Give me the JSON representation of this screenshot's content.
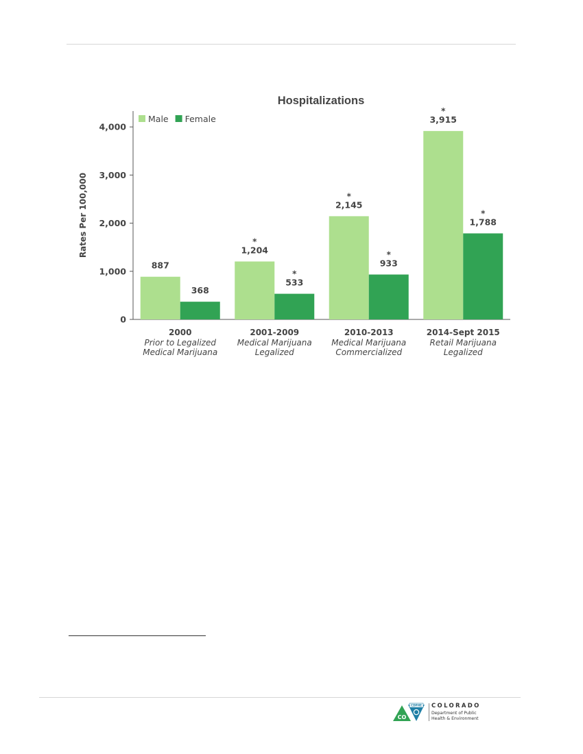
{
  "chart_data": {
    "type": "bar",
    "title": "Hospitalizations",
    "ylabel": "Rates Per 100,000",
    "xlabel": "",
    "ylim": [
      0,
      4300
    ],
    "yticks": [
      0,
      1000,
      2000,
      3000,
      4000
    ],
    "ytick_labels": [
      "0",
      "1,000",
      "2,000",
      "3,000",
      "4,000"
    ],
    "categories": [
      "2000",
      "2001-2009",
      "2010-2013",
      "2014-Sept 2015"
    ],
    "category_sublabels": [
      [
        "Prior to Legalized",
        "Medical Marijuana"
      ],
      [
        "Medical Marijuana",
        "Legalized"
      ],
      [
        "Medical Marijuana",
        "Commercialized"
      ],
      [
        "Retail Marijuana",
        "Legalized"
      ]
    ],
    "series": [
      {
        "name": "Male",
        "color": "#addf8e",
        "values": [
          887,
          1204,
          2145,
          3915
        ],
        "labels": [
          "887",
          "1,204",
          "2,145",
          "3,915"
        ],
        "significant": [
          false,
          true,
          true,
          true
        ]
      },
      {
        "name": "Female",
        "color": "#31a354",
        "values": [
          368,
          533,
          933,
          1788
        ],
        "labels": [
          "368",
          "533",
          "933",
          "1,788"
        ],
        "significant": [
          false,
          true,
          true,
          true
        ]
      }
    ],
    "significance_marker": "*",
    "legend": "top-left",
    "grid": false
  },
  "footer": {
    "agency_name": "COLORADO",
    "agency_dept_line1": "Department of Public",
    "agency_dept_line2": "Health & Environment",
    "logo_letters": "CO",
    "logo_badge": "CDPHE"
  }
}
